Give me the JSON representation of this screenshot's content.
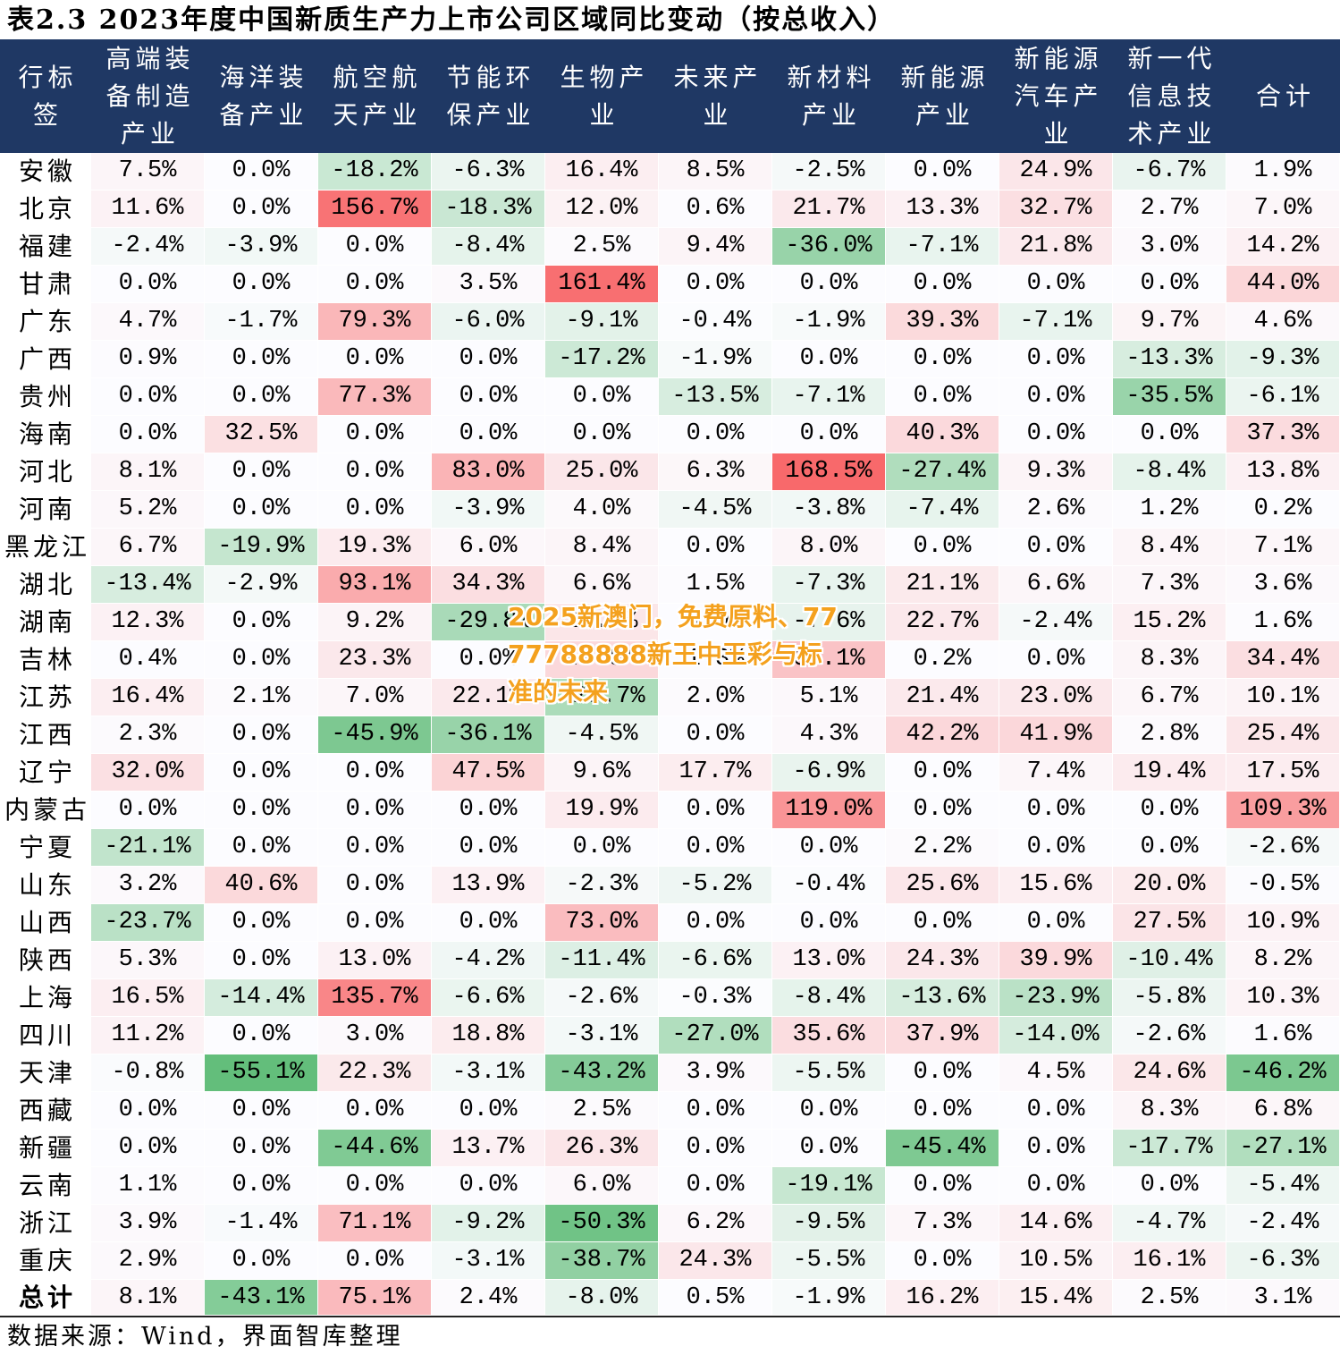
{
  "chart_data": {
    "type": "table",
    "title": "表2.3 2023年度中国新质生产力上市公司区域同比变动（按总收入）",
    "row_header": "行标签",
    "columns": [
      "高端装备制造产业",
      "海洋装备产业",
      "航空航天产业",
      "节能环保产业",
      "生物产业",
      "未来产业",
      "新材料产业",
      "新能源产业",
      "新能源汽车产业",
      "新一代信息技术产业",
      "合计"
    ],
    "rows": [
      {
        "label": "安徽",
        "values": [
          "7.5%",
          "0.0%",
          "-18.2%",
          "-6.3%",
          "16.4%",
          "8.5%",
          "-2.5%",
          "0.0%",
          "24.9%",
          "-6.7%",
          "1.9%"
        ]
      },
      {
        "label": "北京",
        "values": [
          "11.6%",
          "0.0%",
          "156.7%",
          "-18.3%",
          "12.0%",
          "0.6%",
          "21.7%",
          "13.3%",
          "32.7%",
          "2.7%",
          "7.0%"
        ]
      },
      {
        "label": "福建",
        "values": [
          "-2.4%",
          "-3.9%",
          "0.0%",
          "-8.4%",
          "2.5%",
          "9.4%",
          "-36.0%",
          "-7.1%",
          "21.8%",
          "3.0%",
          "14.2%"
        ]
      },
      {
        "label": "甘肃",
        "values": [
          "0.0%",
          "0.0%",
          "0.0%",
          "3.5%",
          "161.4%",
          "0.0%",
          "0.0%",
          "0.0%",
          "0.0%",
          "0.0%",
          "44.0%"
        ]
      },
      {
        "label": "广东",
        "values": [
          "4.7%",
          "-1.7%",
          "79.3%",
          "-6.0%",
          "-9.1%",
          "-0.4%",
          "-1.9%",
          "39.3%",
          "-7.1%",
          "9.7%",
          "4.6%"
        ]
      },
      {
        "label": "广西",
        "values": [
          "0.9%",
          "0.0%",
          "0.0%",
          "0.0%",
          "-17.2%",
          "-1.9%",
          "0.0%",
          "0.0%",
          "0.0%",
          "-13.3%",
          "-9.3%"
        ]
      },
      {
        "label": "贵州",
        "values": [
          "0.0%",
          "0.0%",
          "77.3%",
          "0.0%",
          "0.0%",
          "-13.5%",
          "-7.1%",
          "0.0%",
          "0.0%",
          "-35.5%",
          "-6.1%"
        ]
      },
      {
        "label": "海南",
        "values": [
          "0.0%",
          "32.5%",
          "0.0%",
          "0.0%",
          "0.0%",
          "0.0%",
          "0.0%",
          "40.3%",
          "0.0%",
          "0.0%",
          "37.3%"
        ]
      },
      {
        "label": "河北",
        "values": [
          "8.1%",
          "0.0%",
          "0.0%",
          "83.0%",
          "25.0%",
          "6.3%",
          "168.5%",
          "-27.4%",
          "9.3%",
          "-8.4%",
          "13.8%"
        ]
      },
      {
        "label": "河南",
        "values": [
          "5.2%",
          "0.0%",
          "0.0%",
          "-3.9%",
          "4.0%",
          "-4.5%",
          "-3.8%",
          "-7.4%",
          "2.6%",
          "1.2%",
          "0.2%"
        ]
      },
      {
        "label": "黑龙江",
        "values": [
          "6.7%",
          "-19.9%",
          "19.3%",
          "6.0%",
          "8.4%",
          "0.0%",
          "8.0%",
          "0.0%",
          "0.0%",
          "8.4%",
          "7.1%"
        ]
      },
      {
        "label": "湖北",
        "values": [
          "-13.4%",
          "-2.9%",
          "93.1%",
          "34.3%",
          "6.6%",
          "1.5%",
          "-7.3%",
          "21.1%",
          "6.6%",
          "7.3%",
          "3.6%"
        ]
      },
      {
        "label": "湖南",
        "values": [
          "12.3%",
          "0.0%",
          "9.2%",
          "-29.8%",
          "25.7%",
          "0.0%",
          "-7.6%",
          "22.7%",
          "-2.4%",
          "15.2%",
          "1.6%"
        ]
      },
      {
        "label": "吉林",
        "values": [
          "0.4%",
          "0.0%",
          "23.3%",
          "0.0%",
          "40.8%",
          "1.3%",
          "65.1%",
          "0.2%",
          "0.0%",
          "8.3%",
          "34.4%"
        ]
      },
      {
        "label": "江苏",
        "values": [
          "16.4%",
          "2.1%",
          "7.0%",
          "22.1%",
          "-28.7%",
          "2.0%",
          "5.1%",
          "21.4%",
          "23.0%",
          "6.7%",
          "10.1%"
        ]
      },
      {
        "label": "江西",
        "values": [
          "2.3%",
          "0.0%",
          "-45.9%",
          "-36.1%",
          "-4.5%",
          "0.0%",
          "4.3%",
          "42.2%",
          "41.9%",
          "2.8%",
          "25.4%"
        ]
      },
      {
        "label": "辽宁",
        "values": [
          "32.0%",
          "0.0%",
          "0.0%",
          "47.5%",
          "9.6%",
          "17.7%",
          "-6.9%",
          "0.0%",
          "7.4%",
          "19.4%",
          "17.5%"
        ]
      },
      {
        "label": "内蒙古",
        "values": [
          "0.0%",
          "0.0%",
          "0.0%",
          "0.0%",
          "19.9%",
          "0.0%",
          "119.0%",
          "0.0%",
          "0.0%",
          "0.0%",
          "109.3%"
        ]
      },
      {
        "label": "宁夏",
        "values": [
          "-21.1%",
          "0.0%",
          "0.0%",
          "0.0%",
          "0.0%",
          "0.0%",
          "0.0%",
          "2.2%",
          "0.0%",
          "0.0%",
          "-2.6%"
        ]
      },
      {
        "label": "山东",
        "values": [
          "3.2%",
          "40.6%",
          "0.0%",
          "13.9%",
          "-2.3%",
          "-5.2%",
          "-0.4%",
          "25.6%",
          "15.6%",
          "20.0%",
          "-0.5%"
        ]
      },
      {
        "label": "山西",
        "values": [
          "-23.7%",
          "0.0%",
          "0.0%",
          "0.0%",
          "73.0%",
          "0.0%",
          "0.0%",
          "0.0%",
          "0.0%",
          "27.5%",
          "10.9%"
        ]
      },
      {
        "label": "陕西",
        "values": [
          "5.3%",
          "0.0%",
          "13.0%",
          "-4.2%",
          "-11.4%",
          "-6.6%",
          "13.0%",
          "24.3%",
          "39.9%",
          "-10.4%",
          "8.2%"
        ]
      },
      {
        "label": "上海",
        "values": [
          "16.5%",
          "-14.4%",
          "135.7%",
          "-6.6%",
          "-2.6%",
          "-0.3%",
          "-8.4%",
          "-13.6%",
          "-23.9%",
          "-5.8%",
          "10.3%"
        ]
      },
      {
        "label": "四川",
        "values": [
          "11.2%",
          "0.0%",
          "3.0%",
          "18.8%",
          "-3.1%",
          "-27.0%",
          "35.6%",
          "37.9%",
          "-14.0%",
          "-2.6%",
          "1.6%"
        ]
      },
      {
        "label": "天津",
        "values": [
          "-0.8%",
          "-55.1%",
          "22.3%",
          "-3.1%",
          "-43.2%",
          "3.9%",
          "-5.5%",
          "0.0%",
          "4.5%",
          "24.6%",
          "-46.2%"
        ]
      },
      {
        "label": "西藏",
        "values": [
          "0.0%",
          "0.0%",
          "0.0%",
          "0.0%",
          "2.5%",
          "0.0%",
          "0.0%",
          "0.0%",
          "0.0%",
          "8.3%",
          "6.8%"
        ]
      },
      {
        "label": "新疆",
        "values": [
          "0.0%",
          "0.0%",
          "-44.6%",
          "13.7%",
          "26.3%",
          "0.0%",
          "0.0%",
          "-45.4%",
          "0.0%",
          "-17.7%",
          "-27.1%"
        ]
      },
      {
        "label": "云南",
        "values": [
          "1.1%",
          "0.0%",
          "0.0%",
          "0.0%",
          "6.0%",
          "0.0%",
          "-19.1%",
          "0.0%",
          "0.0%",
          "0.0%",
          "-5.4%"
        ]
      },
      {
        "label": "浙江",
        "values": [
          "3.9%",
          "-1.4%",
          "71.1%",
          "-9.2%",
          "-50.3%",
          "6.2%",
          "-9.5%",
          "7.3%",
          "14.6%",
          "-4.7%",
          "-2.4%"
        ]
      },
      {
        "label": "重庆",
        "values": [
          "2.9%",
          "0.0%",
          "0.0%",
          "-3.1%",
          "-38.7%",
          "24.3%",
          "-5.5%",
          "0.0%",
          "10.5%",
          "16.1%",
          "-6.3%"
        ]
      }
    ],
    "total": {
      "label": "总计",
      "values": [
        "8.1%",
        "-43.1%",
        "75.1%",
        "2.4%",
        "-8.0%",
        "0.5%",
        "-1.9%",
        "16.2%",
        "15.4%",
        "2.5%",
        "3.1%"
      ]
    }
  },
  "footer": {
    "source": "数据来源：Wind，界面智库整理"
  },
  "watermark": {
    "lines": [
      "2025新澳门，免费原料、77",
      "77788888新王中王彩与标",
      "准的未来"
    ]
  },
  "colors": {
    "header_background": "#1F3864",
    "header_text": "#FFFFFF",
    "scale_negative": "#63BE7B",
    "scale_zero": "#FCFCFF",
    "scale_positive": "#F8696B",
    "watermark_text": "#F4A11E"
  }
}
